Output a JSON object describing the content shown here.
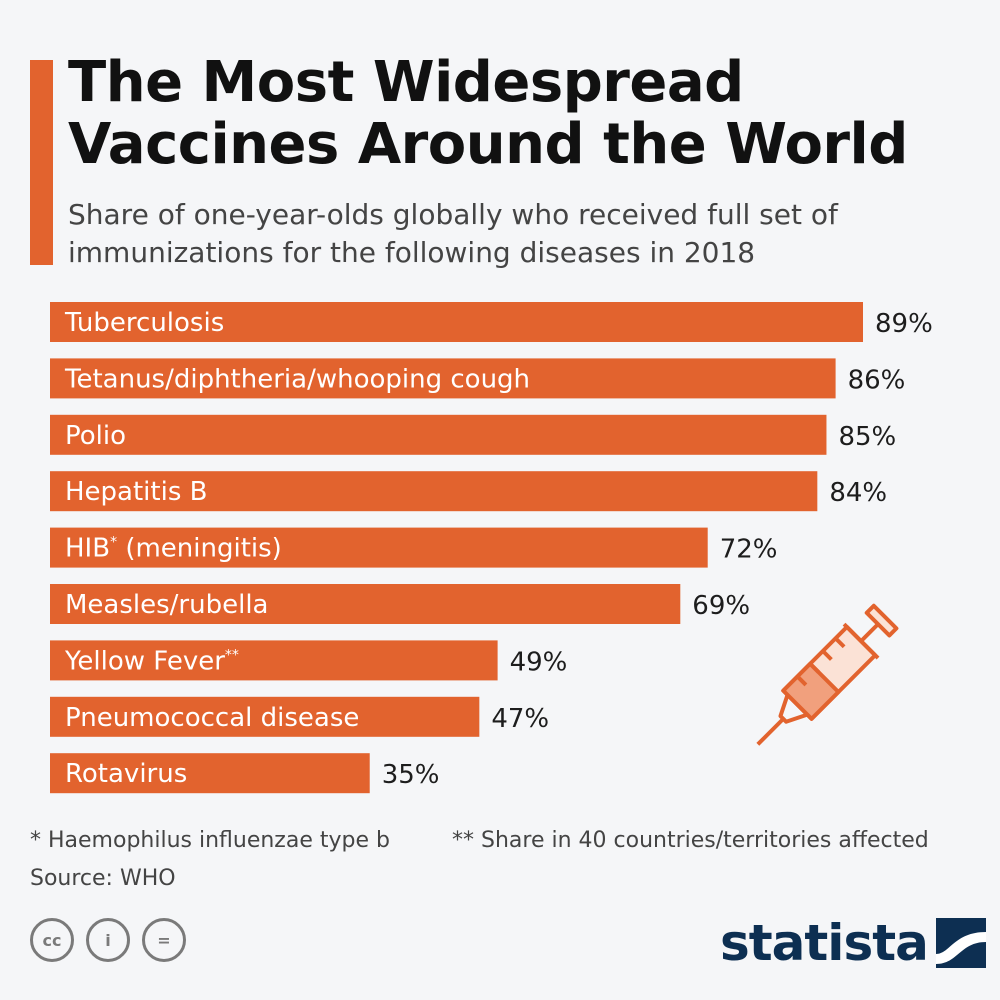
{
  "header": {
    "title": "The Most Widespread Vaccines Around the World",
    "subtitle": "Share of one-year-olds globally who received full set of immunizations for the following diseases in 2018"
  },
  "chart_data": {
    "type": "bar",
    "orientation": "horizontal",
    "title": "The Most Widespread Vaccines Around the World",
    "subtitle": "Share of one-year-olds globally who received full set of immunizations for the following diseases in 2018",
    "categories": [
      {
        "label": "Tuberculosis",
        "sup": ""
      },
      {
        "label": "Tetanus/diphtheria/whooping cough",
        "sup": ""
      },
      {
        "label": "Polio",
        "sup": ""
      },
      {
        "label": "Hepatitis B",
        "sup": ""
      },
      {
        "label": "HIB",
        "sup": "*",
        "suffix": " (meningitis)"
      },
      {
        "label": "Measles/rubella",
        "sup": ""
      },
      {
        "label": "Yellow Fever",
        "sup": "**"
      },
      {
        "label": "Pneumococcal disease",
        "sup": ""
      },
      {
        "label": "Rotavirus",
        "sup": ""
      }
    ],
    "values": [
      89,
      86,
      85,
      84,
      72,
      69,
      49,
      47,
      35
    ],
    "value_labels": [
      "89%",
      "86%",
      "85%",
      "84%",
      "72%",
      "69%",
      "49%",
      "47%",
      "35%"
    ],
    "unit": "%",
    "xlim": [
      0,
      89
    ],
    "grid": false,
    "bar_color": "#e2632e"
  },
  "footnotes": {
    "hib": "* Haemophilus influenzae type b",
    "yellow_fever": "** Share in 40 countries/territories affected",
    "source": "Source: WHO"
  },
  "license_icons": [
    "cc-icon",
    "attribution-icon",
    "no-derivatives-icon"
  ],
  "license_glyphs": {
    "cc": "cc",
    "by": "i",
    "nd": "="
  },
  "brand": {
    "name": "statista",
    "color": "#0d2f52"
  },
  "colors": {
    "accent": "#e2632e",
    "background": "#f5f6f8"
  }
}
